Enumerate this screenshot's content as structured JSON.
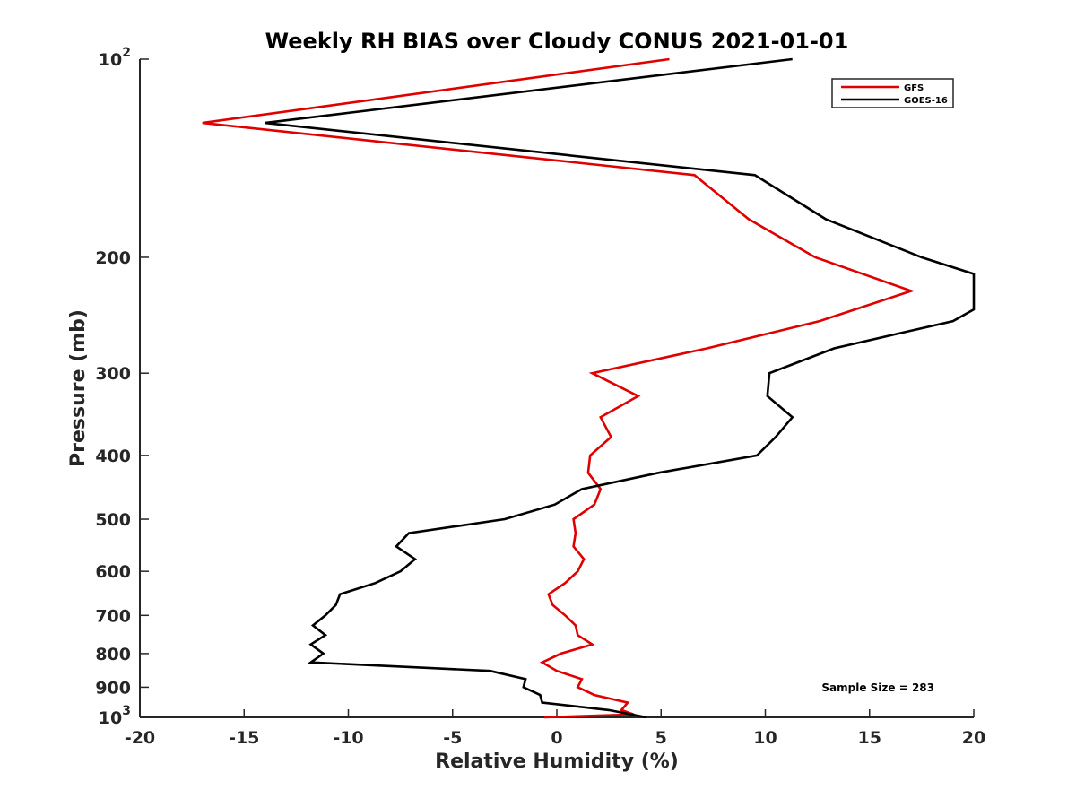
{
  "chart_data": {
    "type": "line",
    "title": "Weekly RH BIAS over Cloudy CONUS 2021-01-01",
    "xlabel": "Relative Humidity (%)",
    "ylabel": "Pressure (mb)",
    "xlim": [
      -20,
      20
    ],
    "ylim": [
      100,
      1000
    ],
    "y_scale": "log",
    "y_reversed": true,
    "x_ticks": [
      -20,
      -15,
      -10,
      -5,
      0,
      5,
      10,
      15,
      20
    ],
    "y_ticks": [
      {
        "value": 100,
        "base": "10",
        "exp": "2"
      },
      {
        "value": 200,
        "label": "200"
      },
      {
        "value": 300,
        "label": "300"
      },
      {
        "value": 400,
        "label": "400"
      },
      {
        "value": 500,
        "label": "500"
      },
      {
        "value": 600,
        "label": "600"
      },
      {
        "value": 700,
        "label": "700"
      },
      {
        "value": 800,
        "label": "800"
      },
      {
        "value": 900,
        "label": "900"
      },
      {
        "value": 1000,
        "base": "10",
        "exp": "3"
      }
    ],
    "grid": false,
    "legend_position": "top-right",
    "annotation": "Sample Size = 283",
    "series": [
      {
        "name": "GFS",
        "color": "#e00000",
        "points": [
          [
            5.4,
            100
          ],
          [
            -17.0,
            125
          ],
          [
            6.6,
            150
          ],
          [
            9.2,
            175
          ],
          [
            12.4,
            200
          ],
          [
            17.0,
            225
          ],
          [
            12.6,
            250
          ],
          [
            7.2,
            275
          ],
          [
            1.7,
            300
          ],
          [
            3.9,
            325
          ],
          [
            2.1,
            350
          ],
          [
            2.6,
            375
          ],
          [
            1.6,
            400
          ],
          [
            1.5,
            425
          ],
          [
            2.1,
            450
          ],
          [
            1.8,
            475
          ],
          [
            0.8,
            500
          ],
          [
            0.9,
            525
          ],
          [
            0.8,
            550
          ],
          [
            1.3,
            575
          ],
          [
            1.0,
            600
          ],
          [
            0.4,
            625
          ],
          [
            -0.4,
            650
          ],
          [
            -0.2,
            675
          ],
          [
            0.4,
            700
          ],
          [
            0.9,
            725
          ],
          [
            1.0,
            750
          ],
          [
            1.7,
            775
          ],
          [
            0.2,
            800
          ],
          [
            -0.7,
            825
          ],
          [
            0.0,
            850
          ],
          [
            1.2,
            875
          ],
          [
            1.0,
            900
          ],
          [
            1.8,
            925
          ],
          [
            3.4,
            950
          ],
          [
            3.1,
            975
          ],
          [
            3.7,
            990
          ],
          [
            -0.6,
            1000
          ]
        ]
      },
      {
        "name": "GOES-16",
        "color": "#000000",
        "points": [
          [
            11.3,
            100
          ],
          [
            -14.0,
            125
          ],
          [
            9.5,
            150
          ],
          [
            12.9,
            175
          ],
          [
            17.5,
            200
          ],
          [
            20.0,
            212
          ],
          [
            20.0,
            240
          ],
          [
            19.0,
            250
          ],
          [
            13.3,
            275
          ],
          [
            10.2,
            300
          ],
          [
            10.1,
            325
          ],
          [
            11.3,
            350
          ],
          [
            10.5,
            375
          ],
          [
            9.6,
            400
          ],
          [
            4.9,
            425
          ],
          [
            1.2,
            450
          ],
          [
            -0.1,
            475
          ],
          [
            -2.5,
            500
          ],
          [
            -7.1,
            525
          ],
          [
            -7.7,
            550
          ],
          [
            -6.8,
            575
          ],
          [
            -7.5,
            600
          ],
          [
            -8.7,
            625
          ],
          [
            -10.4,
            650
          ],
          [
            -10.6,
            675
          ],
          [
            -11.1,
            700
          ],
          [
            -11.7,
            725
          ],
          [
            -11.1,
            750
          ],
          [
            -11.8,
            775
          ],
          [
            -11.2,
            800
          ],
          [
            -11.8,
            825
          ],
          [
            -3.2,
            850
          ],
          [
            -1.5,
            875
          ],
          [
            -1.6,
            900
          ],
          [
            -0.8,
            925
          ],
          [
            -0.7,
            950
          ],
          [
            2.5,
            975
          ],
          [
            4.3,
            1000
          ]
        ]
      }
    ]
  }
}
